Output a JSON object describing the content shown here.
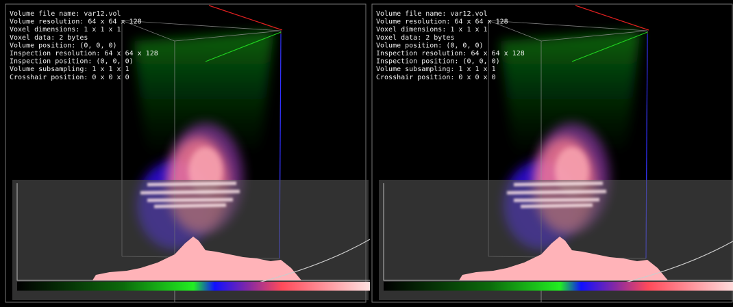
{
  "panels": [
    {
      "info_lines": [
        "Volume file name: var12.vol",
        "Volume resolution: 64 x 64 x 128",
        "Voxel dimensions: 1 x 1 x 1",
        "Voxel data: 2 bytes",
        "Volume position: (0, 0, 0)",
        "Inspection resolution: 64 x 64 x 128",
        "Inspection position: (0, 0, 0)",
        "Volume subsampling: 1 x 1 x 1",
        "Crosshair position: 0 x 0 x 0"
      ]
    },
    {
      "info_lines": [
        "Volume file name: var12.vol",
        "Volume resolution: 64 x 64 x 128",
        "Voxel dimensions: 1 x 1 x 1",
        "Voxel data: 2 bytes",
        "Volume position: (0, 0, 0)",
        "Inspection resolution: 64 x 64 x 128",
        "Inspection position: (0, 0, 0)",
        "Volume subsampling: 1 x 1 x 1",
        "Crosshair position: 0 x 0 x 0"
      ]
    }
  ]
}
